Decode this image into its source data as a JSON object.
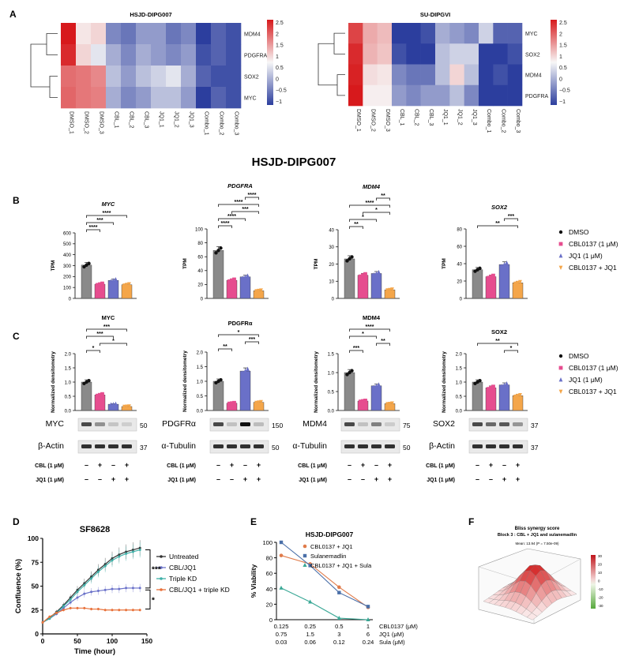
{
  "colors": {
    "dmso": "#8a8a8a",
    "cbl": "#e64d8f",
    "jq1": "#6a70c8",
    "combo": "#f4a64a",
    "heat_high": "#d7191c",
    "heat_mid": "#f7f7f7",
    "heat_low": "#2c3e9e",
    "untreated": "#333333",
    "cbljq1": "#6b72c9",
    "triplekd": "#3fb0a8",
    "cbljq1kd": "#e8713a"
  },
  "panels": {
    "a": "A",
    "b": "B",
    "c": "C",
    "d": "D",
    "e": "E",
    "f": "F"
  },
  "section_title": "HSJD-DIPG007",
  "common": {
    "tpm": "TPM",
    "dens": "Normalized densitometry",
    "legend": [
      "DMSO",
      "CBL0137 (1 μM)",
      "JQ1 (1 μM)",
      "CBL0137 + JQ1"
    ],
    "cbl_row": "CBL (1 μM)",
    "jq1_row": "JQ1 (1 μM)",
    "minus": "–",
    "plus": "+"
  },
  "heatmaps": [
    {
      "title": "HSJD-DIPG007",
      "rows": [
        "MDM4",
        "PDGFRA",
        "SOX2",
        "MYC"
      ],
      "cols": [
        "DMSO_1",
        "DMSO_2",
        "DMSO_3",
        "CBL_1",
        "CBL_2",
        "CBL_3",
        "JQ1_1",
        "JQ1_2",
        "JQ1_3",
        "Combo_1",
        "Combo_2",
        "Combo_3"
      ],
      "values": [
        [
          2.6,
          0.2,
          0.4,
          -0.6,
          -0.7,
          -0.5,
          -0.5,
          -0.7,
          -0.6,
          -1,
          -0.8,
          -0.9
        ],
        [
          2.4,
          0.4,
          -0.1,
          -0.4,
          -0.6,
          -0.4,
          -0.5,
          -0.6,
          -0.5,
          -0.9,
          -0.8,
          -0.9
        ],
        [
          1.6,
          1.5,
          1.3,
          -0.3,
          -0.5,
          -0.3,
          -0.2,
          -0.1,
          -0.4,
          -0.8,
          -0.9,
          -0.9
        ],
        [
          1.7,
          1.5,
          1.4,
          -0.4,
          -0.6,
          -0.5,
          -0.3,
          -0.3,
          -0.5,
          -1,
          -0.8,
          -0.9
        ]
      ],
      "scale": [
        "2.5",
        "2",
        "1.5",
        "1",
        "0.5",
        "0",
        "−0.5",
        "−1"
      ]
    },
    {
      "title": "SU-DIPGVI",
      "rows": [
        "MYC",
        "SOX2",
        "MDM4",
        "PDGFRA"
      ],
      "cols": [
        "DMSO_1",
        "DMSO_2",
        "DMSO_3",
        "CBL_1",
        "CBL_2",
        "CBL_3",
        "JQ1_1",
        "JQ1_2",
        "JQ1_3",
        "Combo_1",
        "Combo_2",
        "Combo_3"
      ],
      "values": [
        [
          2.1,
          0.9,
          0.7,
          -1,
          -1,
          -0.9,
          -0.4,
          -0.5,
          -0.6,
          -0.2,
          -0.8,
          -0.8
        ],
        [
          2.4,
          0.8,
          0.6,
          -0.9,
          -1,
          -1,
          -0.3,
          -0.2,
          -0.2,
          -1,
          -1,
          -0.9
        ],
        [
          2.5,
          0.3,
          0.2,
          -0.6,
          -0.7,
          -0.7,
          -0.3,
          0.4,
          -0.3,
          -1,
          -0.9,
          -1
        ],
        [
          2.6,
          0.1,
          0.1,
          -0.5,
          -0.6,
          -0.5,
          -0.5,
          -0.3,
          -0.6,
          -1,
          -1,
          -1
        ]
      ],
      "scale": [
        "2.5",
        "2",
        "1.5",
        "1",
        "0.5",
        "0",
        "−0.5",
        "−1"
      ]
    }
  ],
  "chart_data": [
    {
      "type": "bar",
      "panel": "B",
      "title": "MYC",
      "ylabel": "TPM",
      "ylim": [
        0,
        600
      ],
      "ticks": [
        "0",
        "100",
        "200",
        "300",
        "400",
        "500",
        "600"
      ],
      "categories": [
        "DMSO",
        "CBL0137 (1 μM)",
        "JQ1 (1 μM)",
        "CBL0137 + JQ1"
      ],
      "values": [
        305,
        130,
        165,
        125
      ],
      "sig": [
        {
          "from": 0,
          "to": 1,
          "label": "****"
        },
        {
          "from": 0,
          "to": 2,
          "label": "***"
        },
        {
          "from": 0,
          "to": 3,
          "label": "****"
        }
      ]
    },
    {
      "type": "bar",
      "panel": "B",
      "title": "PDGFRA",
      "ylabel": "TPM",
      "ylim": [
        0,
        100
      ],
      "ticks": [
        "0",
        "20",
        "40",
        "60",
        "80",
        "100"
      ],
      "categories": [
        "DMSO",
        "CBL0137 (1 μM)",
        "JQ1 (1 μM)",
        "CBL0137 + JQ1"
      ],
      "values": [
        69,
        26,
        31,
        11
      ],
      "sig": [
        {
          "from": 0,
          "to": 1,
          "label": "****"
        },
        {
          "from": 0,
          "to": 2,
          "label": "****"
        },
        {
          "from": 1,
          "to": 3,
          "label": "***"
        },
        {
          "from": 0,
          "to": 3,
          "label": "****"
        },
        {
          "from": 2,
          "to": 3,
          "label": "****"
        }
      ]
    },
    {
      "type": "bar",
      "panel": "B",
      "title": "MDM4",
      "ylabel": "TPM",
      "ylim": [
        0,
        40
      ],
      "ticks": [
        "0",
        "10",
        "20",
        "30",
        "40"
      ],
      "categories": [
        "DMSO",
        "CBL0137 (1 μM)",
        "JQ1 (1 μM)",
        "CBL0137 + JQ1"
      ],
      "values": [
        23,
        13.5,
        14.5,
        5
      ],
      "sig": [
        {
          "from": 0,
          "to": 1,
          "label": "**"
        },
        {
          "from": 0,
          "to": 2,
          "label": "*"
        },
        {
          "from": 1,
          "to": 3,
          "label": "*"
        },
        {
          "from": 0,
          "to": 3,
          "label": "****"
        },
        {
          "from": 2,
          "to": 3,
          "label": "**"
        }
      ]
    },
    {
      "type": "bar",
      "panel": "B",
      "title": "SOX2",
      "ylabel": "TPM",
      "ylim": [
        0,
        80
      ],
      "ticks": [
        "0",
        "20",
        "40",
        "60",
        "80"
      ],
      "categories": [
        "DMSO",
        "CBL0137 (1 μM)",
        "JQ1 (1 μM)",
        "CBL0137 + JQ1"
      ],
      "values": [
        33,
        25,
        39,
        18
      ],
      "sig": [
        {
          "from": 0,
          "to": 3,
          "label": "**"
        },
        {
          "from": 2,
          "to": 3,
          "label": "***"
        }
      ]
    },
    {
      "type": "bar",
      "panel": "C",
      "title": "MYC",
      "ylabel": "Normalized densitometry",
      "ylim": [
        0,
        2.0
      ],
      "ticks": [
        "0.0",
        "0.5",
        "1.0",
        "1.5",
        "2.0"
      ],
      "categories": [
        "DMSO",
        "CBL0137 (1 μM)",
        "JQ1 (1 μM)",
        "CBL0137 + JQ1"
      ],
      "values": [
        1.0,
        0.55,
        0.22,
        0.14
      ],
      "sig": [
        {
          "from": 0,
          "to": 1,
          "label": "*"
        },
        {
          "from": 1,
          "to": 3,
          "label": "*"
        },
        {
          "from": 0,
          "to": 2,
          "label": "***"
        },
        {
          "from": 0,
          "to": 3,
          "label": "***"
        }
      ],
      "blot": {
        "protein": "MYC",
        "loading": "β-Actin",
        "mw": "50",
        "mw_load": "37"
      }
    },
    {
      "type": "bar",
      "panel": "C",
      "title": "PDGFRα",
      "ylabel": "Normalized densitometry",
      "ylim": [
        0,
        2.0
      ],
      "ticks": [
        "0.0",
        "0.5",
        "1.0",
        "1.5",
        "2.0"
      ],
      "categories": [
        "DMSO",
        "CBL0137 (1 μM)",
        "JQ1 (1 μM)",
        "CBL0137 + JQ1"
      ],
      "values": [
        1.0,
        0.25,
        1.35,
        0.28
      ],
      "sig": [
        {
          "from": 0,
          "to": 1,
          "label": "**"
        },
        {
          "from": 2,
          "to": 3,
          "label": "***"
        },
        {
          "from": 0,
          "to": 3,
          "label": "*"
        }
      ],
      "blot": {
        "protein": "PDGFRα",
        "loading": "α-Tubulin",
        "mw": "150",
        "mw_load": "50"
      }
    },
    {
      "type": "bar",
      "panel": "C",
      "title": "MDM4",
      "ylabel": "Normalized densitometry",
      "ylim": [
        0,
        1.5
      ],
      "ticks": [
        "0.0",
        "0.5",
        "1.0",
        "1.5"
      ],
      "categories": [
        "DMSO",
        "CBL0137 (1 μM)",
        "JQ1 (1 μM)",
        "CBL0137 + JQ1"
      ],
      "values": [
        1.0,
        0.25,
        0.65,
        0.18
      ],
      "sig": [
        {
          "from": 0,
          "to": 1,
          "label": "***"
        },
        {
          "from": 2,
          "to": 3,
          "label": "**"
        },
        {
          "from": 0,
          "to": 2,
          "label": "*"
        },
        {
          "from": 0,
          "to": 3,
          "label": "****"
        }
      ],
      "blot": {
        "protein": "MDM4",
        "loading": "α-Tubulin",
        "mw": "75",
        "mw_load": "50"
      }
    },
    {
      "type": "bar",
      "panel": "C",
      "title": "SOX2",
      "ylabel": "Normalized densitometry",
      "ylim": [
        0,
        2.0
      ],
      "ticks": [
        "0.0",
        "0.5",
        "1.0",
        "1.5",
        "2.0"
      ],
      "categories": [
        "DMSO",
        "CBL0137 (1 μM)",
        "JQ1 (1 μM)",
        "CBL0137 + JQ1"
      ],
      "values": [
        1.0,
        0.8,
        0.9,
        0.52
      ],
      "sig": [
        {
          "from": 2,
          "to": 3,
          "label": "*"
        },
        {
          "from": 0,
          "to": 3,
          "label": "**"
        }
      ],
      "blot": {
        "protein": "SOX2",
        "loading": "β-Actin",
        "mw": "37",
        "mw_load": "37"
      }
    },
    {
      "type": "line",
      "panel": "D",
      "title": "SF8628",
      "xlabel": "Time (hour)",
      "ylabel": "Confluence (%)",
      "xlim": [
        0,
        150
      ],
      "ylim": [
        0,
        100
      ],
      "xticks": [
        "0",
        "50",
        "100",
        "150"
      ],
      "yticks": [
        "0",
        "25",
        "50",
        "75",
        "100"
      ],
      "x": [
        0,
        10,
        20,
        30,
        40,
        50,
        60,
        70,
        80,
        90,
        100,
        110,
        120,
        130,
        140
      ],
      "series": [
        {
          "name": "Untreated",
          "values": [
            12,
            17,
            23,
            30,
            38,
            46,
            53,
            60,
            67,
            73,
            79,
            83,
            86,
            88,
            90
          ]
        },
        {
          "name": "CBL/JQ1",
          "values": [
            12,
            16,
            21,
            27,
            33,
            38,
            42,
            44,
            45,
            46,
            47,
            47,
            48,
            48,
            48
          ]
        },
        {
          "name": "Triple KD",
          "values": [
            12,
            16,
            22,
            29,
            36,
            44,
            51,
            58,
            65,
            71,
            77,
            81,
            84,
            86,
            88
          ]
        },
        {
          "name": "CBL/JQ1 + triple KD",
          "values": [
            12,
            18,
            22,
            25,
            27,
            27,
            27,
            26,
            26,
            25,
            25,
            25,
            25,
            25,
            25
          ]
        }
      ],
      "sig": [
        "***",
        "*"
      ]
    },
    {
      "type": "line",
      "panel": "E",
      "title": "HSJD-DIPG007",
      "ylabel": "% Viability",
      "ylim": [
        0,
        100
      ],
      "yticks": [
        "0",
        "20",
        "40",
        "60",
        "80",
        "100"
      ],
      "categories": [
        "0.125",
        "0.25",
        "0.5",
        "1"
      ],
      "x_rows": [
        {
          "label": "CBL0137 (μM)",
          "values": [
            "0.125",
            "0.25",
            "0.5",
            "1"
          ]
        },
        {
          "label": "JQ1 (μM)",
          "values": [
            "0.75",
            "1.5",
            "3",
            "6"
          ]
        },
        {
          "label": "Sula (μM)",
          "values": [
            "0.03",
            "0.06",
            "0.12",
            "0.24"
          ]
        }
      ],
      "series": [
        {
          "name": "CBL0137 + JQ1",
          "values": [
            83,
            72,
            42,
            16
          ]
        },
        {
          "name": "Sulanemadlin",
          "values": [
            100,
            70,
            35,
            17
          ]
        },
        {
          "name": "CBL0137 + JQ1 + Sula",
          "values": [
            41,
            23,
            2,
            0
          ]
        }
      ]
    },
    {
      "type": "surface",
      "panel": "F",
      "title": "Bliss synergy score",
      "subtitle": "Block 3 : CBL + JQ1 and sulanemadlin",
      "mean": "Mean: 13.94 (P = 7.50e-09)",
      "scale": [
        "30",
        "20",
        "10",
        "0",
        "-10",
        "-20",
        "-30"
      ]
    }
  ]
}
